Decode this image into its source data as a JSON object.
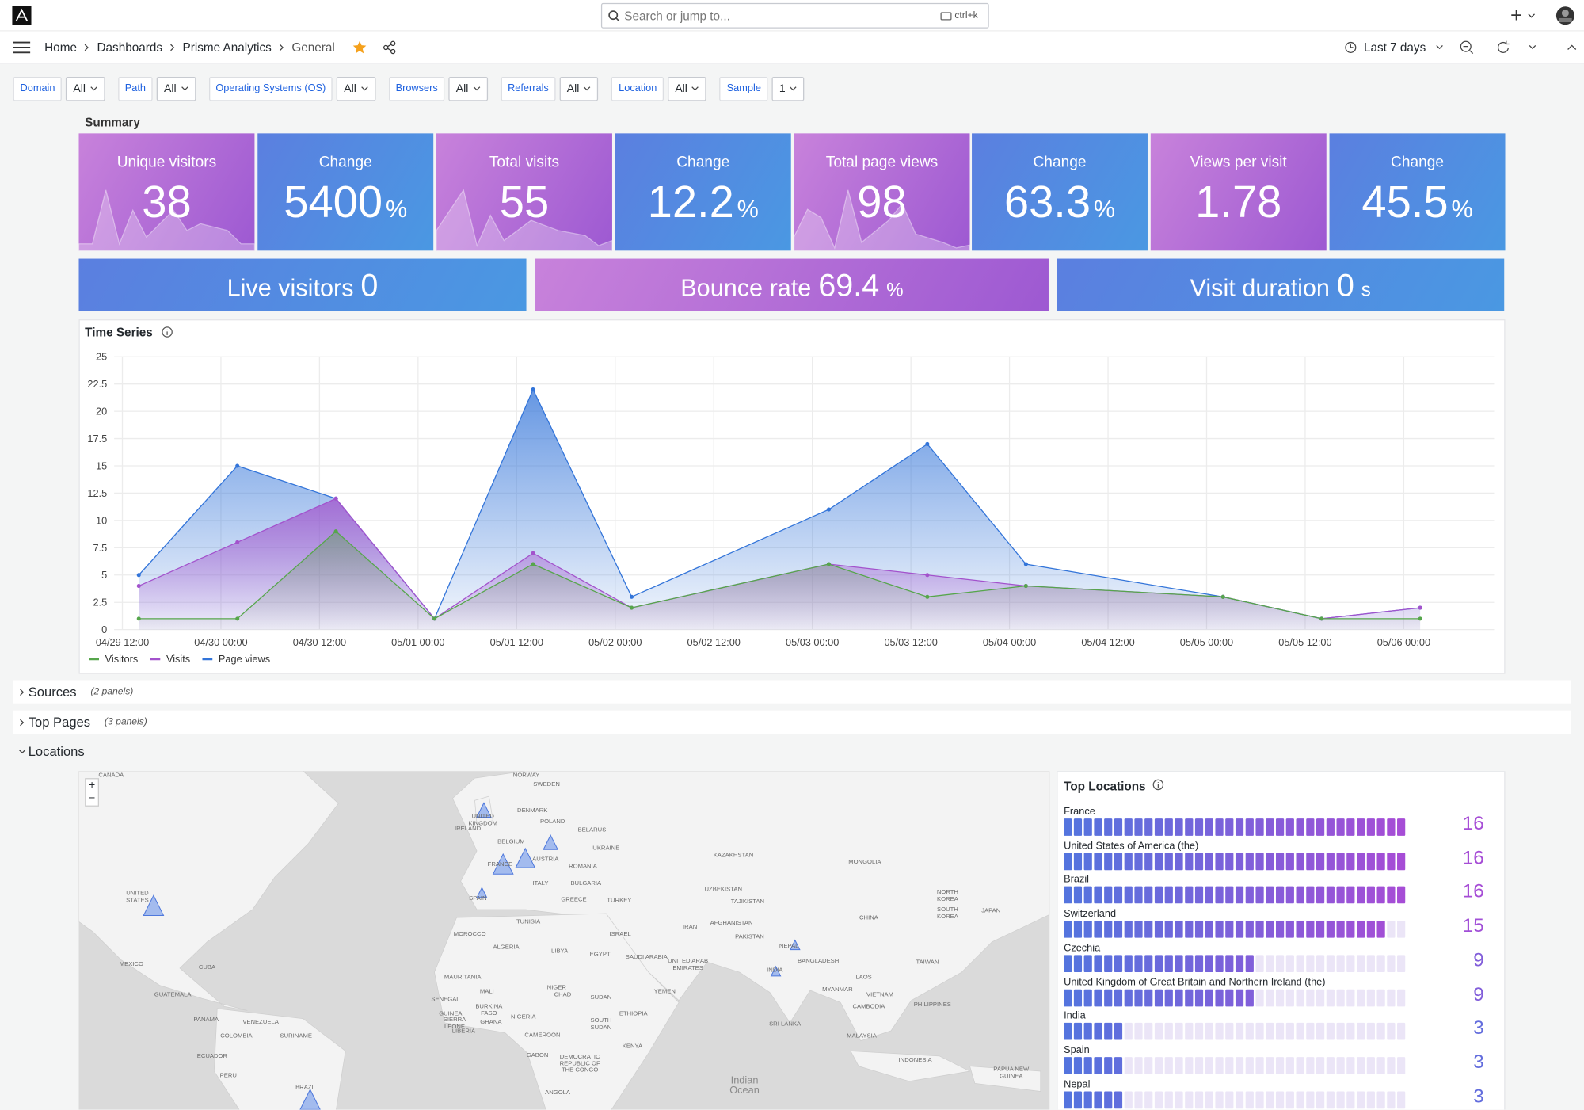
{
  "header": {
    "search_placeholder": "Search or jump to...",
    "shortcut": "ctrl+k"
  },
  "breadcrumbs": [
    "Home",
    "Dashboards",
    "Prisme Analytics",
    "General"
  ],
  "time_range": "Last 7 days",
  "filters": [
    {
      "label": "Domain",
      "value": "All"
    },
    {
      "label": "Path",
      "value": "All"
    },
    {
      "label": "Operating Systems (OS)",
      "value": "All"
    },
    {
      "label": "Browsers",
      "value": "All"
    },
    {
      "label": "Referrals",
      "value": "All"
    },
    {
      "label": "Location",
      "value": "All"
    },
    {
      "label": "Sample",
      "value": "1"
    }
  ],
  "summary": {
    "title": "Summary",
    "stats": [
      {
        "label": "Unique visitors",
        "value": 38
      },
      {
        "label": "Change",
        "value": 5400,
        "unit": "%"
      },
      {
        "label": "Total visits",
        "value": 55
      },
      {
        "label": "Change",
        "value": 12.2,
        "unit": "%"
      },
      {
        "label": "Total page views",
        "value": 98
      },
      {
        "label": "Change",
        "value": 63.3,
        "unit": "%"
      },
      {
        "label": "Views per visit",
        "value": 1.78
      },
      {
        "label": "Change",
        "value": 45.5,
        "unit": "%"
      }
    ],
    "highlights": [
      {
        "label": "Live visitors",
        "value": 0
      },
      {
        "label": "Bounce rate",
        "value": 69.4,
        "unit": "%"
      },
      {
        "label": "Visit duration",
        "value": 0,
        "unit": "s"
      }
    ]
  },
  "chart_data": {
    "type": "line",
    "title": "Time Series",
    "area": true,
    "grid": true,
    "x": [
      "04/29 14:00",
      "04/30 02:00",
      "04/30 14:00",
      "05/01 02:00",
      "05/01 14:00",
      "05/02 02:00",
      "05/03 02:00",
      "05/03 14:00",
      "05/04 02:00",
      "05/05 02:00",
      "05/05 14:00",
      "05/06 02:00"
    ],
    "xlim": [
      "04/29 11:00",
      "05/06 11:00"
    ],
    "xticks": [
      "04/29 12:00",
      "04/30 00:00",
      "04/30 12:00",
      "05/01 00:00",
      "05/01 12:00",
      "05/02 00:00",
      "05/02 12:00",
      "05/03 00:00",
      "05/03 12:00",
      "05/04 00:00",
      "05/04 12:00",
      "05/05 00:00",
      "05/05 12:00",
      "05/06 00:00"
    ],
    "ylim": [
      0,
      25
    ],
    "yticks": [
      0,
      2.5,
      5,
      7.5,
      10,
      12.5,
      15,
      17.5,
      20,
      22.5,
      25
    ],
    "series": [
      {
        "name": "Visitors",
        "color": "#56a64b",
        "values": [
          1,
          1,
          9,
          1,
          6,
          2,
          6,
          3,
          4,
          3,
          1,
          1
        ]
      },
      {
        "name": "Visits",
        "color": "#a352cc",
        "values": [
          4,
          8,
          12,
          1,
          7,
          2,
          6,
          5,
          4,
          3,
          1,
          2
        ]
      },
      {
        "name": "Page views",
        "color": "#3274d9",
        "values": [
          5,
          15,
          12,
          1,
          22,
          3,
          11,
          17,
          6,
          3,
          1,
          2
        ]
      }
    ]
  },
  "rows": [
    {
      "title": "Sources",
      "note": "(2 panels)"
    },
    {
      "title": "Top Pages",
      "note": "(3 panels)"
    },
    {
      "title": "Locations"
    }
  ],
  "map": {
    "zoom_in": "+",
    "zoom_out": "−",
    "labels": [
      "CANADA",
      "NORWAY",
      "SWEDEN",
      "DENMARK",
      "UNITED KINGDOM",
      "IRELAND",
      "BELGIUM",
      "POLAND",
      "BELARUS",
      "UKRAINE",
      "FRANCE",
      "AUSTRIA",
      "ROMANIA",
      "ITALY",
      "BULGARIA",
      "SPAIN",
      "GREECE",
      "TURKEY",
      "KAZAKHSTAN",
      "MONGOLIA",
      "UZBEKISTAN",
      "TAJIKISTAN",
      "NORTH KOREA",
      "SOUTH KOREA",
      "JAPAN",
      "CHINA",
      "UNITED STATES",
      "MEXICO",
      "CUBA",
      "GUATEMALA",
      "PANAMA",
      "VENEZUELA",
      "COLOMBIA",
      "SURINAME",
      "ECUADOR",
      "PERU",
      "BRAZIL",
      "TUNISIA",
      "MOROCCO",
      "ALGERIA",
      "LIBYA",
      "EGYPT",
      "ISRAEL",
      "SAUDI ARABIA",
      "IRAN",
      "AFGHANISTAN",
      "PAKISTAN",
      "UNITED ARAB EMIRATES",
      "NEPAL",
      "INDIA",
      "BANGLADESH",
      "MYANMAR",
      "LAOS",
      "VIETNAM",
      "TAIWAN",
      "PHILIPPINES",
      "CAMBODIA",
      "MAURITANIA",
      "MALI",
      "NIGER",
      "CHAD",
      "SUDAN",
      "YEMEN",
      "ETHIOPIA",
      "SENEGAL",
      "BURKINA FASO",
      "GUINEA",
      "SIERRA LEONE",
      "LIBERIA",
      "GHANA",
      "NIGERIA",
      "CAMEROON",
      "GABON",
      "DEMOCRATIC REPUBLIC OF THE CONGO",
      "SOUTH SUDAN",
      "KENYA",
      "ANGOLA",
      "SRI LANKA",
      "MALAYSIA",
      "INDONESIA",
      "PAPUA NEW GUINEA",
      "Indian Ocean"
    ]
  },
  "locations": {
    "title": "Top Locations",
    "items": [
      {
        "name": "France",
        "value": 16
      },
      {
        "name": "United States of America (the)",
        "value": 16
      },
      {
        "name": "Brazil",
        "value": 16
      },
      {
        "name": "Switzerland",
        "value": 15
      },
      {
        "name": "Czechia",
        "value": 9
      },
      {
        "name": "United Kingdom of Great Britain and Northern Ireland (the)",
        "value": 9
      },
      {
        "name": "India",
        "value": 3
      },
      {
        "name": "Spain",
        "value": 3
      },
      {
        "name": "Nepal",
        "value": 3
      }
    ]
  }
}
